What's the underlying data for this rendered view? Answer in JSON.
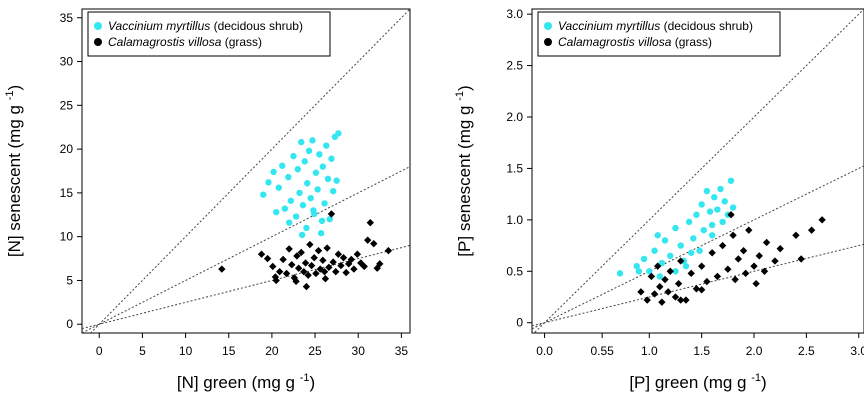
{
  "chart_data": [
    {
      "type": "scatter",
      "xlabel_main": "[N] green (mg g ",
      "xlabel_sup": "-1",
      "xlabel_close": ")",
      "ylabel_main": "[N] senescent (mg g ",
      "ylabel_sup": "-1",
      "ylabel_close": ")",
      "xlim": [
        -2,
        36
      ],
      "ylim": [
        -1,
        36
      ],
      "x_ticks": [
        0,
        5,
        10,
        15,
        20,
        25,
        30,
        35
      ],
      "x_tick_labels": [
        "0",
        "5",
        "10",
        "15",
        "20",
        "25",
        "30",
        "35"
      ],
      "y_ticks": [
        0,
        5,
        10,
        15,
        20,
        25,
        30,
        35
      ],
      "y_tick_labels": [
        "0",
        "5",
        "10",
        "15",
        "20",
        "25",
        "30",
        "35"
      ],
      "reference_lines": [
        1.0,
        0.5,
        0.25
      ],
      "legend_position": "top-left",
      "grid": false,
      "series": [
        {
          "species": "Vaccinium myrtillus",
          "note": "(decidous shrub)",
          "color": "#33e6f0",
          "points": [
            [
              19.0,
              14.8
            ],
            [
              19.6,
              16.2
            ],
            [
              20.2,
              17.4
            ],
            [
              20.8,
              15.6
            ],
            [
              21.2,
              18.1
            ],
            [
              21.5,
              13.2
            ],
            [
              21.9,
              16.8
            ],
            [
              22.2,
              14.1
            ],
            [
              22.5,
              19.2
            ],
            [
              22.8,
              12.3
            ],
            [
              23.0,
              17.7
            ],
            [
              23.2,
              15.0
            ],
            [
              23.4,
              20.8
            ],
            [
              23.6,
              13.6
            ],
            [
              23.8,
              18.6
            ],
            [
              24.0,
              11.0
            ],
            [
              24.1,
              16.1
            ],
            [
              24.3,
              19.8
            ],
            [
              24.5,
              14.4
            ],
            [
              24.7,
              21.0
            ],
            [
              24.9,
              12.6
            ],
            [
              25.1,
              17.3
            ],
            [
              25.3,
              15.4
            ],
            [
              25.5,
              19.4
            ],
            [
              25.7,
              10.4
            ],
            [
              25.9,
              18.0
            ],
            [
              26.1,
              13.8
            ],
            [
              26.3,
              20.4
            ],
            [
              26.5,
              16.6
            ],
            [
              26.7,
              12.0
            ],
            [
              26.9,
              18.9
            ],
            [
              27.1,
              15.2
            ],
            [
              27.3,
              21.4
            ],
            [
              27.5,
              16.4
            ],
            [
              27.7,
              21.8
            ],
            [
              22.0,
              11.6
            ],
            [
              23.5,
              10.2
            ],
            [
              24.8,
              13.0
            ],
            [
              25.8,
              11.8
            ],
            [
              20.5,
              12.8
            ]
          ]
        },
        {
          "species": "Calamagrostis villosa",
          "note": "(grass)",
          "color": "#000000",
          "points": [
            [
              14.2,
              6.3
            ],
            [
              18.8,
              8.0
            ],
            [
              19.5,
              7.5
            ],
            [
              20.1,
              6.6
            ],
            [
              20.4,
              5.4
            ],
            [
              20.9,
              6.0
            ],
            [
              21.3,
              7.4
            ],
            [
              21.7,
              5.8
            ],
            [
              22.0,
              8.6
            ],
            [
              22.3,
              6.8
            ],
            [
              22.6,
              5.3
            ],
            [
              22.9,
              7.8
            ],
            [
              23.1,
              6.4
            ],
            [
              23.4,
              8.2
            ],
            [
              23.7,
              6.0
            ],
            [
              23.9,
              7.0
            ],
            [
              24.2,
              5.6
            ],
            [
              24.4,
              9.1
            ],
            [
              24.6,
              6.7
            ],
            [
              24.9,
              7.6
            ],
            [
              25.1,
              5.8
            ],
            [
              25.4,
              8.4
            ],
            [
              25.6,
              6.3
            ],
            [
              25.9,
              7.3
            ],
            [
              26.1,
              6.0
            ],
            [
              26.4,
              8.7
            ],
            [
              26.6,
              6.5
            ],
            [
              26.9,
              12.6
            ],
            [
              27.1,
              7.1
            ],
            [
              27.4,
              6.0
            ],
            [
              27.7,
              8.0
            ],
            [
              28.0,
              6.7
            ],
            [
              28.3,
              7.6
            ],
            [
              28.6,
              5.9
            ],
            [
              28.9,
              6.9
            ],
            [
              29.2,
              7.4
            ],
            [
              29.5,
              6.3
            ],
            [
              29.9,
              8.0
            ],
            [
              30.3,
              7.0
            ],
            [
              30.7,
              6.6
            ],
            [
              31.1,
              9.6
            ],
            [
              31.4,
              11.6
            ],
            [
              31.8,
              9.2
            ],
            [
              32.2,
              6.4
            ],
            [
              32.5,
              6.9
            ],
            [
              33.5,
              8.4
            ],
            [
              24.0,
              4.3
            ],
            [
              20.5,
              5.0
            ],
            [
              22.8,
              4.9
            ],
            [
              26.2,
              5.2
            ]
          ]
        }
      ]
    },
    {
      "type": "scatter",
      "xlabel_main": "[P] green (mg g ",
      "xlabel_sup": "-1",
      "xlabel_close": ")",
      "ylabel_main": "[P] senescent (mg g ",
      "ylabel_sup": "-1",
      "ylabel_close": ")",
      "xlim": [
        -0.12,
        3.05
      ],
      "ylim": [
        -0.1,
        3.05
      ],
      "x_ticks": [
        0.0,
        0.55,
        1.0,
        1.5,
        2.0,
        2.5,
        3.0
      ],
      "x_tick_labels": [
        "0.0",
        "0.55",
        "1.0",
        "1.5",
        "2.0",
        "2.5",
        "3.0"
      ],
      "y_ticks": [
        0.0,
        0.5,
        1.0,
        1.5,
        2.0,
        2.5,
        3.0
      ],
      "y_tick_labels": [
        "0",
        "0.5",
        "1.0",
        "1.5",
        "2.0",
        "2.5",
        "3.0"
      ],
      "reference_lines": [
        1.0,
        0.5,
        0.25
      ],
      "legend_position": "top-left",
      "grid": false,
      "series": [
        {
          "species": "Vaccinium myrtillus",
          "note": "(decidous shrub)",
          "color": "#33e6f0",
          "points": [
            [
              0.72,
              0.48
            ],
            [
              0.88,
              0.55
            ],
            [
              0.95,
              0.62
            ],
            [
              1.0,
              0.5
            ],
            [
              1.05,
              0.7
            ],
            [
              1.08,
              0.85
            ],
            [
              1.12,
              0.58
            ],
            [
              1.15,
              0.8
            ],
            [
              1.2,
              0.65
            ],
            [
              1.25,
              0.92
            ],
            [
              1.3,
              0.75
            ],
            [
              1.33,
              0.6
            ],
            [
              1.38,
              0.98
            ],
            [
              1.42,
              0.82
            ],
            [
              1.45,
              1.05
            ],
            [
              1.48,
              0.7
            ],
            [
              1.5,
              1.15
            ],
            [
              1.52,
              0.9
            ],
            [
              1.55,
              1.28
            ],
            [
              1.58,
              1.08
            ],
            [
              1.6,
              0.95
            ],
            [
              1.62,
              1.22
            ],
            [
              1.65,
              1.1
            ],
            [
              1.68,
              1.3
            ],
            [
              1.7,
              0.98
            ],
            [
              1.72,
              1.18
            ],
            [
              1.75,
              1.05
            ],
            [
              1.78,
              1.38
            ],
            [
              1.8,
              1.12
            ],
            [
              1.35,
              0.55
            ],
            [
              1.4,
              0.68
            ],
            [
              1.25,
              0.5
            ],
            [
              1.1,
              0.45
            ],
            [
              0.9,
              0.5
            ],
            [
              1.6,
              0.85
            ]
          ]
        },
        {
          "species": "Calamagrostis villosa",
          "note": "(grass)",
          "color": "#000000",
          "points": [
            [
              0.92,
              0.3
            ],
            [
              0.98,
              0.22
            ],
            [
              1.02,
              0.45
            ],
            [
              1.05,
              0.28
            ],
            [
              1.08,
              0.55
            ],
            [
              1.1,
              0.35
            ],
            [
              1.12,
              0.2
            ],
            [
              1.15,
              0.42
            ],
            [
              1.18,
              0.3
            ],
            [
              1.2,
              0.5
            ],
            [
              1.25,
              0.25
            ],
            [
              1.28,
              0.38
            ],
            [
              1.3,
              0.6
            ],
            [
              1.35,
              0.22
            ],
            [
              1.4,
              0.48
            ],
            [
              1.45,
              0.33
            ],
            [
              1.5,
              0.55
            ],
            [
              1.55,
              0.4
            ],
            [
              1.6,
              0.68
            ],
            [
              1.65,
              0.45
            ],
            [
              1.7,
              0.75
            ],
            [
              1.75,
              0.52
            ],
            [
              1.8,
              0.85
            ],
            [
              1.82,
              0.42
            ],
            [
              1.85,
              0.62
            ],
            [
              1.9,
              0.7
            ],
            [
              1.92,
              0.48
            ],
            [
              1.95,
              0.9
            ],
            [
              2.0,
              0.55
            ],
            [
              2.02,
              0.38
            ],
            [
              2.05,
              0.65
            ],
            [
              2.1,
              0.5
            ],
            [
              2.12,
              0.78
            ],
            [
              2.2,
              0.6
            ],
            [
              2.25,
              0.72
            ],
            [
              2.4,
              0.85
            ],
            [
              2.45,
              0.62
            ],
            [
              2.55,
              0.9
            ],
            [
              2.65,
              1.0
            ],
            [
              1.78,
              1.05
            ],
            [
              1.3,
              0.22
            ],
            [
              1.5,
              0.32
            ]
          ]
        }
      ]
    }
  ]
}
